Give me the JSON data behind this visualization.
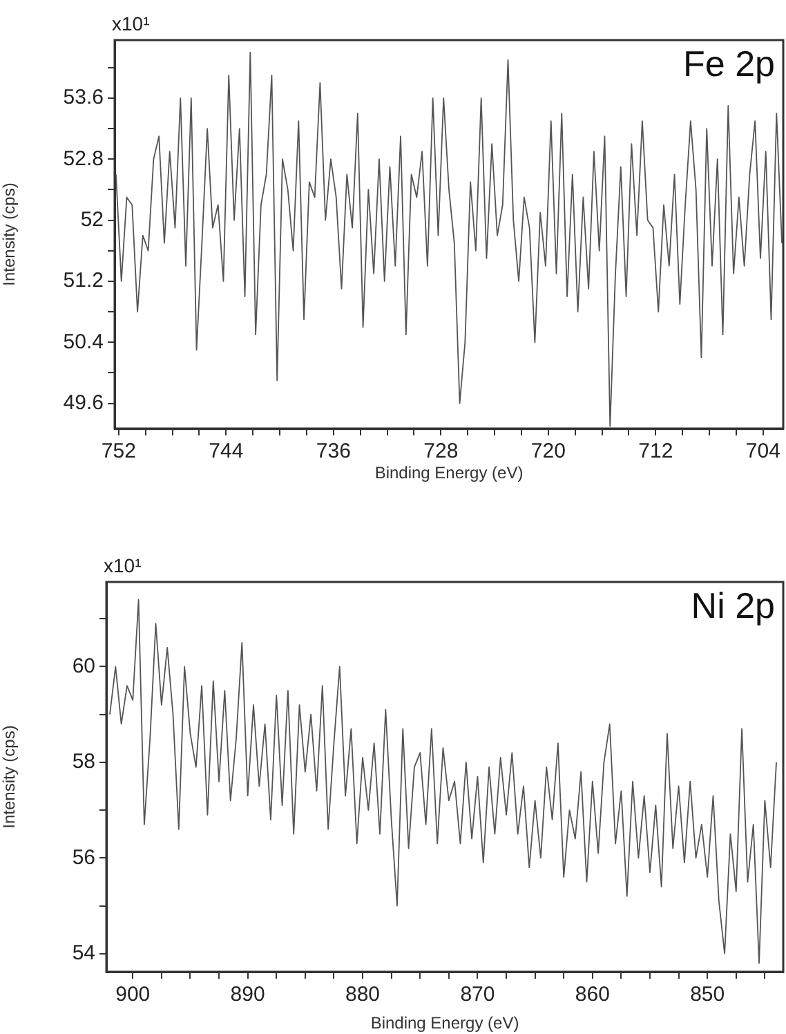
{
  "chart_data": [
    {
      "type": "line",
      "title": "Fe 2p",
      "xlabel": "Binding Energy (eV)",
      "ylabel": "Intensity (cps)",
      "annotations": [
        "x10¹"
      ],
      "xlim": [
        752.3,
        702.5
      ],
      "xticks": [
        752,
        {
          "value": 750,
          "label": null
        },
        {
          "value": 748,
          "label": null
        },
        {
          "value": 746,
          "label": null
        },
        744,
        {
          "value": 742,
          "label": null
        },
        {
          "value": 740,
          "label": null
        },
        {
          "value": 738,
          "label": null
        },
        736,
        {
          "value": 734,
          "label": null
        },
        {
          "value": 732,
          "label": null
        },
        {
          "value": 730,
          "label": null
        },
        728,
        {
          "value": 726,
          "label": null
        },
        {
          "value": 724,
          "label": null
        },
        {
          "value": 722,
          "label": null
        },
        720,
        {
          "value": 718,
          "label": null
        },
        {
          "value": 716,
          "label": null
        },
        {
          "value": 714,
          "label": null
        },
        712,
        {
          "value": 710,
          "label": null
        },
        {
          "value": 708,
          "label": null
        },
        {
          "value": 706,
          "label": null
        },
        704
      ],
      "ylim": [
        49.27,
        54.36
      ],
      "yticks": [
        49.6,
        {
          "value": 50.0,
          "label": null
        },
        50.4,
        {
          "value": 50.8,
          "label": null
        },
        51.2,
        {
          "value": 51.6,
          "label": null
        },
        52,
        {
          "value": 52.4,
          "label": null
        },
        52.8,
        {
          "value": 53.2,
          "label": null
        },
        53.6,
        {
          "value": 54.0,
          "label": null
        }
      ],
      "series": [
        {
          "color": "#555555",
          "x": [
            752.2,
            751.8,
            751.4,
            751,
            750.6,
            750.2,
            749.8,
            749.4,
            749,
            748.6,
            748.2,
            747.8,
            747.4,
            747,
            746.6,
            746.2,
            745.8,
            745.4,
            745,
            744.6,
            744.2,
            743.8,
            743.4,
            743,
            742.6,
            742.2,
            741.8,
            741.4,
            741,
            740.6,
            740.2,
            739.8,
            739.4,
            739,
            738.6,
            738.2,
            737.8,
            737.4,
            737,
            736.6,
            736.2,
            735.8,
            735.4,
            735,
            734.6,
            734.2,
            733.8,
            733.4,
            733,
            732.6,
            732.2,
            731.8,
            731.4,
            731,
            730.6,
            730.2,
            729.8,
            729.4,
            729,
            728.6,
            728.2,
            727.8,
            727.4,
            727,
            726.6,
            726.2,
            725.8,
            725.4,
            725,
            724.6,
            724.2,
            723.8,
            723.4,
            723,
            722.6,
            722.2,
            721.8,
            721.4,
            721,
            720.6,
            720.2,
            719.8,
            719.4,
            719,
            718.6,
            718.2,
            717.8,
            717.4,
            717,
            716.6,
            716.2,
            715.8,
            715.4,
            715,
            714.6,
            714.2,
            713.8,
            713.4,
            713,
            712.6,
            712.2,
            711.8,
            711.4,
            711,
            710.6,
            710.2,
            709.8,
            709.4,
            709,
            708.6,
            708.2,
            707.8,
            707.4,
            707,
            706.6,
            706.2,
            705.8,
            705.4,
            705,
            704.6,
            704.2,
            703.8,
            703.4,
            703,
            702.6
          ],
          "values": [
            52.6,
            51.2,
            52.3,
            52.2,
            50.8,
            51.8,
            51.6,
            52.8,
            53.1,
            51.7,
            52.9,
            51.9,
            53.6,
            51.4,
            53.6,
            50.3,
            51.7,
            53.2,
            51.9,
            52.2,
            51.2,
            53.9,
            52.0,
            53.2,
            51.0,
            54.2,
            50.5,
            52.2,
            52.6,
            53.9,
            49.9,
            52.8,
            52.4,
            51.6,
            53.3,
            50.7,
            52.5,
            52.3,
            53.8,
            52.0,
            52.8,
            52.3,
            51.1,
            52.6,
            51.9,
            53.4,
            50.6,
            52.4,
            51.3,
            52.8,
            51.2,
            52.7,
            51.4,
            53.1,
            50.5,
            52.6,
            52.3,
            52.9,
            51.4,
            53.6,
            51.8,
            53.6,
            52.4,
            51.7,
            49.6,
            50.4,
            52.5,
            51.6,
            53.6,
            51.5,
            53.0,
            51.8,
            52.2,
            54.1,
            52.0,
            51.2,
            52.3,
            51.9,
            50.4,
            52.1,
            51.4,
            53.3,
            51.3,
            53.4,
            51.0,
            52.6,
            50.8,
            52.3,
            51.1,
            52.9,
            51.6,
            53.1,
            49.3,
            51.3,
            52.7,
            51.0,
            53.0,
            51.8,
            53.3,
            52.0,
            51.9,
            50.8,
            52.2,
            51.4,
            52.6,
            50.9,
            52.2,
            53.3,
            52.4,
            50.2,
            53.2,
            51.4,
            52.8,
            50.5,
            53.5,
            51.3,
            52.3,
            51.4,
            52.6,
            53.3,
            51.5,
            52.9,
            50.7,
            53.4,
            51.7
          ]
        }
      ]
    },
    {
      "type": "line",
      "title": "Ni 2p",
      "xlabel": "Binding Energy (eV)",
      "ylabel": "Intensity (cps)",
      "annotations": [
        "x10¹"
      ],
      "xlim": [
        902.3,
        843.4
      ],
      "xticks": [
        900,
        {
          "value": 897.5,
          "label": null
        },
        {
          "value": 895,
          "label": null
        },
        {
          "value": 892.5,
          "label": null
        },
        890,
        {
          "value": 887.5,
          "label": null
        },
        {
          "value": 885,
          "label": null
        },
        {
          "value": 882.5,
          "label": null
        },
        880,
        {
          "value": 877.5,
          "label": null
        },
        {
          "value": 875,
          "label": null
        },
        {
          "value": 872.5,
          "label": null
        },
        870,
        {
          "value": 867.5,
          "label": null
        },
        {
          "value": 865,
          "label": null
        },
        {
          "value": 862.5,
          "label": null
        },
        860,
        {
          "value": 857.5,
          "label": null
        },
        {
          "value": 855,
          "label": null
        },
        {
          "value": 852.5,
          "label": null
        },
        850,
        {
          "value": 847.5,
          "label": null
        },
        {
          "value": 845,
          "label": null
        }
      ],
      "ylim": [
        53.62,
        61.77
      ],
      "yticks": [
        54,
        {
          "value": 55,
          "label": null
        },
        56,
        {
          "value": 57,
          "label": null
        },
        58,
        {
          "value": 59,
          "label": null
        },
        60,
        {
          "value": 61,
          "label": null
        }
      ],
      "series": [
        {
          "color": "#555555",
          "x": [
            902,
            901.5,
            901,
            900.5,
            900,
            899.5,
            899,
            898.5,
            898,
            897.5,
            897,
            896.5,
            896,
            895.5,
            895,
            894.5,
            894,
            893.5,
            893,
            892.5,
            892,
            891.5,
            891,
            890.5,
            890,
            889.5,
            889,
            888.5,
            888,
            887.5,
            887,
            886.5,
            886,
            885.5,
            885,
            884.5,
            884,
            883.5,
            883,
            882.5,
            882,
            881.5,
            881,
            880.5,
            880,
            879.5,
            879,
            878.5,
            878,
            877.5,
            877,
            876.5,
            876,
            875.5,
            875,
            874.5,
            874,
            873.5,
            873,
            872.5,
            872,
            871.5,
            871,
            870.5,
            870,
            869.5,
            869,
            868.5,
            868,
            867.5,
            867,
            866.5,
            866,
            865.5,
            865,
            864.5,
            864,
            863.5,
            863,
            862.5,
            862,
            861.5,
            861,
            860.5,
            860,
            859.5,
            859,
            858.5,
            858,
            857.5,
            857,
            856.5,
            856,
            855.5,
            855,
            854.5,
            854,
            853.5,
            853,
            852.5,
            852,
            851.5,
            851,
            850.5,
            850,
            849.5,
            849,
            848.5,
            848,
            847.5,
            847,
            846.5,
            846,
            845.5,
            845,
            844.5,
            844
          ],
          "values": [
            59.0,
            60.0,
            58.8,
            59.6,
            59.3,
            61.4,
            56.7,
            58.5,
            60.9,
            59.2,
            60.4,
            59.0,
            56.6,
            60.0,
            58.6,
            57.9,
            59.6,
            56.9,
            59.7,
            57.6,
            59.5,
            57.2,
            58.5,
            60.5,
            57.3,
            59.2,
            57.5,
            58.8,
            56.8,
            59.4,
            57.1,
            59.5,
            56.5,
            59.2,
            57.8,
            59.0,
            57.4,
            59.6,
            56.6,
            58.4,
            60.0,
            57.3,
            58.7,
            56.3,
            58.1,
            57.0,
            58.4,
            56.5,
            59.1,
            56.8,
            55.0,
            58.7,
            56.2,
            57.9,
            58.2,
            56.7,
            58.7,
            56.3,
            58.3,
            57.2,
            57.6,
            56.3,
            58.0,
            56.4,
            57.7,
            55.9,
            57.9,
            56.5,
            58.1,
            56.9,
            58.2,
            56.5,
            57.5,
            55.8,
            57.2,
            56.0,
            57.9,
            56.8,
            58.4,
            55.6,
            57.0,
            56.4,
            57.8,
            55.5,
            57.6,
            56.1,
            58.0,
            58.8,
            56.3,
            57.4,
            55.2,
            57.6,
            56.0,
            57.3,
            55.7,
            57.1,
            55.4,
            58.6,
            56.2,
            57.5,
            55.9,
            57.6,
            56.0,
            56.7,
            55.6,
            57.3,
            55.1,
            54.0,
            56.5,
            55.3,
            58.7,
            55.5,
            56.7,
            53.8,
            57.2,
            55.8,
            58.0
          ]
        }
      ]
    }
  ]
}
